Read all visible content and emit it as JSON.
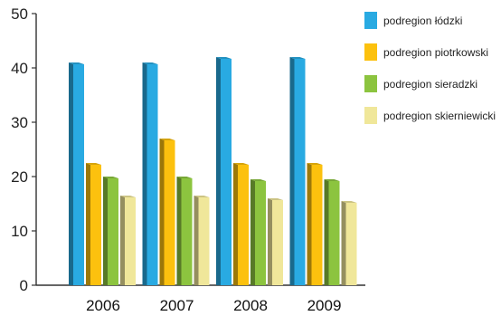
{
  "chart_data": {
    "type": "bar",
    "categories": [
      "2006",
      "2007",
      "2008",
      "2009"
    ],
    "series": [
      {
        "name": "podregion łódzki",
        "values": [
          41,
          41,
          42,
          42
        ],
        "color": "#29aae2"
      },
      {
        "name": "podregion piotrkowski",
        "values": [
          22.5,
          27,
          22.5,
          22.5
        ],
        "color": "#fcc10e"
      },
      {
        "name": "podregion sieradzki",
        "values": [
          20,
          20,
          19.5,
          19.5
        ],
        "color": "#8cc43f"
      },
      {
        "name": "podregion skierniewicki",
        "values": [
          16.5,
          16.5,
          16,
          15.5
        ],
        "color": "#f0e79a"
      }
    ],
    "yticks": [
      0,
      10,
      20,
      30,
      40,
      50
    ],
    "ylim": [
      0,
      50
    ],
    "title": "",
    "xlabel": "",
    "ylabel": "",
    "legend": "right",
    "grid": false
  }
}
